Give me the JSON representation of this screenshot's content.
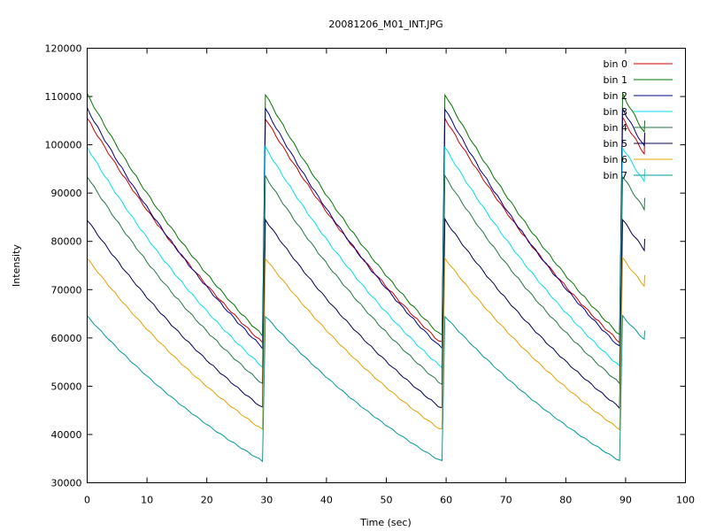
{
  "chart_data": {
    "type": "line",
    "title": "20081206_M01_INT.JPG",
    "xlabel": "Time (sec)",
    "ylabel": "Intensity",
    "xlim": [
      0,
      100
    ],
    "ylim": [
      30000,
      120000
    ],
    "xticks": [
      "0",
      "10",
      "20",
      "30",
      "40",
      "50",
      "60",
      "70",
      "80",
      "90",
      "100"
    ],
    "yticks": [
      "30000",
      "40000",
      "50000",
      "60000",
      "70000",
      "80000",
      "90000",
      "100000",
      "110000",
      "120000"
    ],
    "grid": false,
    "legend_position": "top-right",
    "cycle_period_sec": 30,
    "series": [
      {
        "name": "bin 0",
        "color": "#cc0000",
        "peak": 105500,
        "trough": 59000,
        "end": 102500
      },
      {
        "name": "bin 1",
        "color": "#007700",
        "peak": 110500,
        "trough": 60500,
        "end": 105000
      },
      {
        "name": "bin 2",
        "color": "#000088",
        "peak": 107500,
        "trough": 58000,
        "end": 102500
      },
      {
        "name": "bin 3",
        "color": "#00e0ee",
        "peak": 99500,
        "trough": 54000,
        "end": 95000
      },
      {
        "name": "bin 4",
        "color": "#227744",
        "peak": 93500,
        "trough": 50500,
        "end": 89000
      },
      {
        "name": "bin 5",
        "color": "#000055",
        "peak": 84500,
        "trough": 45500,
        "end": 80500
      },
      {
        "name": "bin 6",
        "color": "#e8a000",
        "peak": 76500,
        "trough": 41000,
        "end": 73000
      },
      {
        "name": "bin 7",
        "color": "#009999",
        "peak": 64500,
        "trough": 34500,
        "end": 61500
      }
    ]
  }
}
